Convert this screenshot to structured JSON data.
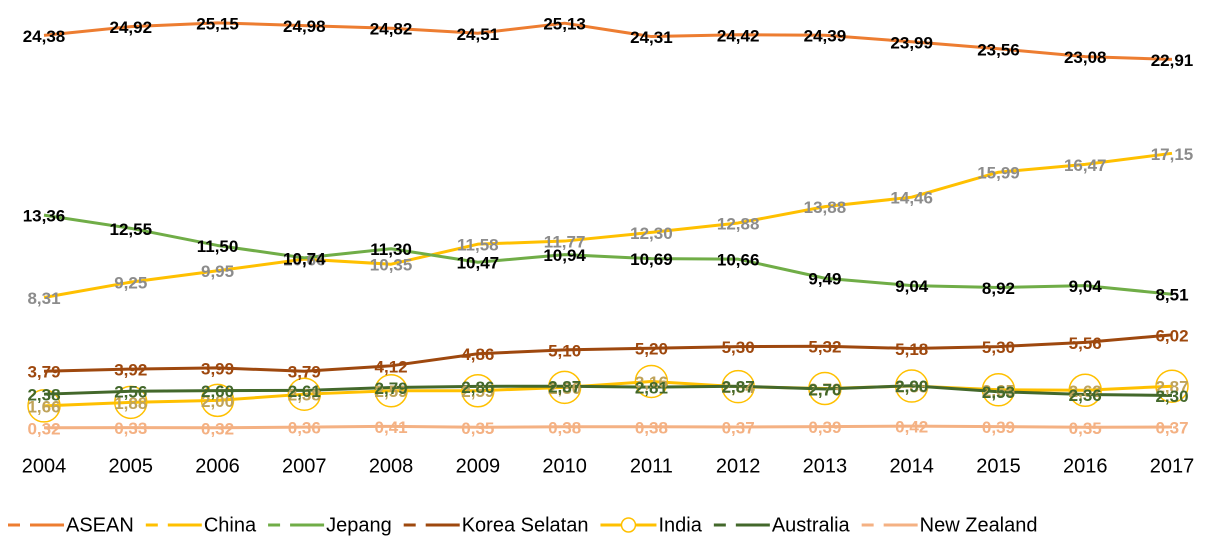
{
  "chart_data": {
    "type": "line",
    "categories": [
      "2004",
      "2005",
      "2006",
      "2007",
      "2008",
      "2009",
      "2010",
      "2011",
      "2012",
      "2013",
      "2014",
      "2015",
      "2016",
      "2017"
    ],
    "ylim": [
      0,
      26
    ],
    "series": [
      {
        "name": "ASEAN",
        "color": "#ED7D31",
        "label_color": "#000000",
        "values": [
          24.38,
          24.92,
          25.15,
          24.98,
          24.82,
          24.51,
          25.13,
          24.31,
          24.42,
          24.39,
          23.99,
          23.56,
          23.08,
          22.91
        ],
        "value_labels": [
          "24,38",
          "24,92",
          "25,15",
          "24,98",
          "24,82",
          "24,51",
          "25,13",
          "24,31",
          "24,42",
          "24,39",
          "23,99",
          "23,56",
          "23,08",
          "22,91"
        ]
      },
      {
        "name": "China",
        "color": "#FFC000",
        "label_color": "#8C8C8C",
        "values": [
          8.31,
          9.25,
          9.95,
          10.66,
          10.35,
          11.58,
          11.77,
          12.3,
          12.88,
          13.88,
          14.46,
          15.99,
          16.47,
          17.15
        ],
        "value_labels": [
          "8,31",
          "9,25",
          "9,95",
          "10,66",
          "10,35",
          "11,58",
          "11,77",
          "12,30",
          "12,88",
          "13,88",
          "14,46",
          "15,99",
          "16,47",
          "17,15"
        ]
      },
      {
        "name": "Jepang",
        "color": "#70AD47",
        "label_color": "#000000",
        "values": [
          13.36,
          12.55,
          11.5,
          10.74,
          11.3,
          10.47,
          10.94,
          10.69,
          10.66,
          9.49,
          9.04,
          8.92,
          9.04,
          8.51
        ],
        "value_labels": [
          "13,36",
          "12,55",
          "11,50",
          "10,74",
          "11,30",
          "10,47",
          "10,94",
          "10,69",
          "10,66",
          "9,49",
          "9,04",
          "8,92",
          "9,04",
          "8,51"
        ]
      },
      {
        "name": "Korea Selatan",
        "color": "#9E480E",
        "label_color": "#9E480E",
        "values": [
          3.79,
          3.92,
          3.99,
          3.79,
          4.12,
          4.86,
          5.1,
          5.2,
          5.3,
          5.32,
          5.18,
          5.3,
          5.56,
          6.02
        ],
        "value_labels": [
          "3,79",
          "3,92",
          "3,99",
          "3,79",
          "4,12",
          "4,86",
          "5,10",
          "5,20",
          "5,30",
          "5,32",
          "5,18",
          "5,30",
          "5,56",
          "6,02"
        ]
      },
      {
        "name": "India",
        "color": "#FFC000",
        "label_color": "#BFA35A",
        "marker": "circle",
        "values": [
          1.66,
          1.88,
          2.0,
          2.38,
          2.59,
          2.59,
          2.8,
          3.16,
          2.84,
          2.73,
          2.88,
          2.65,
          2.62,
          2.87
        ],
        "value_labels": [
          "1,66",
          "1,88",
          "2,00",
          "2,38",
          "2,59",
          "2,59",
          "2,80",
          "3,16",
          "2,84",
          "2,73",
          "2,88",
          "2,65",
          "2,62",
          "2,87"
        ]
      },
      {
        "name": "Australia",
        "color": "#43682B",
        "label_color": "#43682B",
        "values": [
          2.38,
          2.56,
          2.6,
          2.61,
          2.79,
          2.86,
          2.87,
          2.81,
          2.87,
          2.7,
          2.9,
          2.53,
          2.36,
          2.3
        ],
        "value_labels": [
          "2,38",
          "2,56",
          "2,60",
          "2,61",
          "2,79",
          "2,86",
          "2,87",
          "2,81",
          "2,87",
          "2,70",
          "2,90",
          "2,53",
          "2,36",
          "2,30"
        ]
      },
      {
        "name": "New Zealand",
        "color": "#F4B183",
        "label_color": "#F4B183",
        "values": [
          0.32,
          0.33,
          0.32,
          0.36,
          0.41,
          0.35,
          0.38,
          0.38,
          0.37,
          0.39,
          0.42,
          0.39,
          0.35,
          0.37
        ],
        "value_labels": [
          "0,32",
          "0,33",
          "0,32",
          "0,36",
          "0,41",
          "0,35",
          "0,38",
          "0,38",
          "0,37",
          "0,39",
          "0,42",
          "0,39",
          "0,35",
          "0,37"
        ]
      }
    ]
  }
}
